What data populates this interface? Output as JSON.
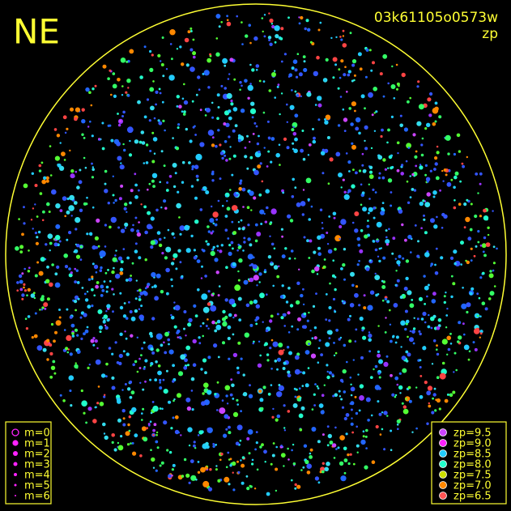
{
  "title": "NE",
  "image_id": "03k61105o0573w",
  "color_by": "zp",
  "legend_m": {
    "labels": [
      "m=0",
      "m=1",
      "m=2",
      "m=3",
      "m=4",
      "m=5",
      "m=6"
    ]
  },
  "legend_zp": {
    "labels": [
      "zp=9.5",
      "zp=9.0",
      "zp=8.5",
      "zp=8.0",
      "zp=7.5",
      "zp=7.0",
      "zp=6.5"
    ],
    "colors": [
      "#cc44ff",
      "#ff22ff",
      "#22ccff",
      "#22ffcc",
      "#ccdd00",
      "#ff8800",
      "#ff5555"
    ]
  }
}
